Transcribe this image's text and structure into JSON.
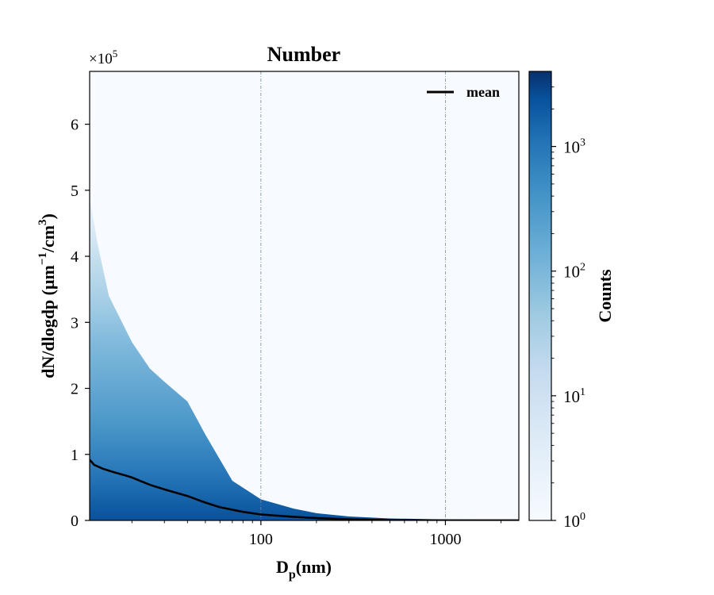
{
  "chart_data": {
    "type": "heatmap",
    "title": "Number",
    "xlabel_main": "D",
    "xlabel_sub": "p",
    "xlabel_rest": "(nm)",
    "ylabel": "dN/dlogdp (μm",
    "ylabel_exp1": "−1",
    "ylabel_mid": "/cm",
    "ylabel_exp2": "3",
    "ylabel_end": ")",
    "x_scale": "log",
    "xlim": [
      11.8,
      2500
    ],
    "x_ticks": [
      100,
      1000
    ],
    "x_tick_labels": [
      "100",
      "1000"
    ],
    "ylim": [
      0,
      680000
    ],
    "y_ticks": [
      0,
      1,
      2,
      3,
      4,
      5,
      6
    ],
    "y_tick_labels": [
      "0",
      "1",
      "2",
      "3",
      "4",
      "5",
      "6"
    ],
    "y_multiplier": "×10",
    "y_multiplier_exp": "5",
    "vlines": [
      100,
      1000
    ],
    "legend": {
      "label": "mean",
      "placement": "top-right"
    },
    "colorbar": {
      "label": "Counts",
      "scale": "log",
      "range": [
        1,
        4000
      ],
      "tick_labels": [
        {
          "base": "10",
          "exp": "0",
          "value": 1
        },
        {
          "base": "10",
          "exp": "1",
          "value": 10
        },
        {
          "base": "10",
          "exp": "2",
          "value": 100
        },
        {
          "base": "10",
          "exp": "3",
          "value": 1000
        }
      ],
      "colormap": "Blues"
    },
    "mean_curve": {
      "name": "mean",
      "x": [
        11.8,
        12.5,
        14,
        16,
        18,
        20,
        25,
        30,
        40,
        50,
        60,
        80,
        100,
        150,
        200,
        300,
        500,
        1000,
        2500
      ],
      "y": [
        92000,
        84000,
        78000,
        73000,
        69000,
        65000,
        54000,
        47000,
        37000,
        27000,
        20000,
        13000,
        9000,
        5500,
        3500,
        1700,
        400,
        100,
        50
      ]
    },
    "density_envelope": {
      "x": [
        11.8,
        13,
        15,
        20,
        25,
        30,
        40,
        50,
        70,
        100,
        150,
        200,
        300,
        500,
        1000,
        2500
      ],
      "y_max": [
        490000,
        420000,
        340000,
        270000,
        230000,
        210000,
        180000,
        130000,
        60000,
        32000,
        18000,
        11000,
        6000,
        3000,
        1500,
        800
      ]
    }
  }
}
